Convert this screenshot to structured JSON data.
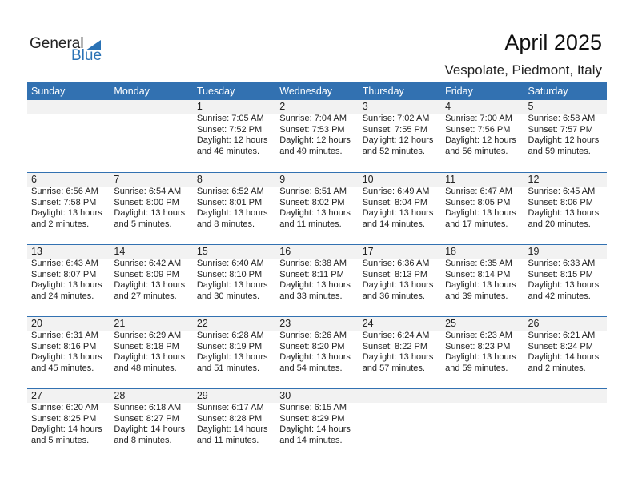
{
  "logo": {
    "general": "General",
    "blue": "Blue"
  },
  "title": "April 2025",
  "location": "Vespolate, Piedmont, Italy",
  "weekdays": [
    "Sunday",
    "Monday",
    "Tuesday",
    "Wednesday",
    "Thursday",
    "Friday",
    "Saturday"
  ],
  "weeks": [
    [
      null,
      null,
      {
        "day": "1",
        "sunrise": "Sunrise: 7:05 AM",
        "sunset": "Sunset: 7:52 PM",
        "daylight": "Daylight: 12 hours",
        "minutes": "and 46 minutes."
      },
      {
        "day": "2",
        "sunrise": "Sunrise: 7:04 AM",
        "sunset": "Sunset: 7:53 PM",
        "daylight": "Daylight: 12 hours",
        "minutes": "and 49 minutes."
      },
      {
        "day": "3",
        "sunrise": "Sunrise: 7:02 AM",
        "sunset": "Sunset: 7:55 PM",
        "daylight": "Daylight: 12 hours",
        "minutes": "and 52 minutes."
      },
      {
        "day": "4",
        "sunrise": "Sunrise: 7:00 AM",
        "sunset": "Sunset: 7:56 PM",
        "daylight": "Daylight: 12 hours",
        "minutes": "and 56 minutes."
      },
      {
        "day": "5",
        "sunrise": "Sunrise: 6:58 AM",
        "sunset": "Sunset: 7:57 PM",
        "daylight": "Daylight: 12 hours",
        "minutes": "and 59 minutes."
      }
    ],
    [
      {
        "day": "6",
        "sunrise": "Sunrise: 6:56 AM",
        "sunset": "Sunset: 7:58 PM",
        "daylight": "Daylight: 13 hours",
        "minutes": "and 2 minutes."
      },
      {
        "day": "7",
        "sunrise": "Sunrise: 6:54 AM",
        "sunset": "Sunset: 8:00 PM",
        "daylight": "Daylight: 13 hours",
        "minutes": "and 5 minutes."
      },
      {
        "day": "8",
        "sunrise": "Sunrise: 6:52 AM",
        "sunset": "Sunset: 8:01 PM",
        "daylight": "Daylight: 13 hours",
        "minutes": "and 8 minutes."
      },
      {
        "day": "9",
        "sunrise": "Sunrise: 6:51 AM",
        "sunset": "Sunset: 8:02 PM",
        "daylight": "Daylight: 13 hours",
        "minutes": "and 11 minutes."
      },
      {
        "day": "10",
        "sunrise": "Sunrise: 6:49 AM",
        "sunset": "Sunset: 8:04 PM",
        "daylight": "Daylight: 13 hours",
        "minutes": "and 14 minutes."
      },
      {
        "day": "11",
        "sunrise": "Sunrise: 6:47 AM",
        "sunset": "Sunset: 8:05 PM",
        "daylight": "Daylight: 13 hours",
        "minutes": "and 17 minutes."
      },
      {
        "day": "12",
        "sunrise": "Sunrise: 6:45 AM",
        "sunset": "Sunset: 8:06 PM",
        "daylight": "Daylight: 13 hours",
        "minutes": "and 20 minutes."
      }
    ],
    [
      {
        "day": "13",
        "sunrise": "Sunrise: 6:43 AM",
        "sunset": "Sunset: 8:07 PM",
        "daylight": "Daylight: 13 hours",
        "minutes": "and 24 minutes."
      },
      {
        "day": "14",
        "sunrise": "Sunrise: 6:42 AM",
        "sunset": "Sunset: 8:09 PM",
        "daylight": "Daylight: 13 hours",
        "minutes": "and 27 minutes."
      },
      {
        "day": "15",
        "sunrise": "Sunrise: 6:40 AM",
        "sunset": "Sunset: 8:10 PM",
        "daylight": "Daylight: 13 hours",
        "minutes": "and 30 minutes."
      },
      {
        "day": "16",
        "sunrise": "Sunrise: 6:38 AM",
        "sunset": "Sunset: 8:11 PM",
        "daylight": "Daylight: 13 hours",
        "minutes": "and 33 minutes."
      },
      {
        "day": "17",
        "sunrise": "Sunrise: 6:36 AM",
        "sunset": "Sunset: 8:13 PM",
        "daylight": "Daylight: 13 hours",
        "minutes": "and 36 minutes."
      },
      {
        "day": "18",
        "sunrise": "Sunrise: 6:35 AM",
        "sunset": "Sunset: 8:14 PM",
        "daylight": "Daylight: 13 hours",
        "minutes": "and 39 minutes."
      },
      {
        "day": "19",
        "sunrise": "Sunrise: 6:33 AM",
        "sunset": "Sunset: 8:15 PM",
        "daylight": "Daylight: 13 hours",
        "minutes": "and 42 minutes."
      }
    ],
    [
      {
        "day": "20",
        "sunrise": "Sunrise: 6:31 AM",
        "sunset": "Sunset: 8:16 PM",
        "daylight": "Daylight: 13 hours",
        "minutes": "and 45 minutes."
      },
      {
        "day": "21",
        "sunrise": "Sunrise: 6:29 AM",
        "sunset": "Sunset: 8:18 PM",
        "daylight": "Daylight: 13 hours",
        "minutes": "and 48 minutes."
      },
      {
        "day": "22",
        "sunrise": "Sunrise: 6:28 AM",
        "sunset": "Sunset: 8:19 PM",
        "daylight": "Daylight: 13 hours",
        "minutes": "and 51 minutes."
      },
      {
        "day": "23",
        "sunrise": "Sunrise: 6:26 AM",
        "sunset": "Sunset: 8:20 PM",
        "daylight": "Daylight: 13 hours",
        "minutes": "and 54 minutes."
      },
      {
        "day": "24",
        "sunrise": "Sunrise: 6:24 AM",
        "sunset": "Sunset: 8:22 PM",
        "daylight": "Daylight: 13 hours",
        "minutes": "and 57 minutes."
      },
      {
        "day": "25",
        "sunrise": "Sunrise: 6:23 AM",
        "sunset": "Sunset: 8:23 PM",
        "daylight": "Daylight: 13 hours",
        "minutes": "and 59 minutes."
      },
      {
        "day": "26",
        "sunrise": "Sunrise: 6:21 AM",
        "sunset": "Sunset: 8:24 PM",
        "daylight": "Daylight: 14 hours",
        "minutes": "and 2 minutes."
      }
    ],
    [
      {
        "day": "27",
        "sunrise": "Sunrise: 6:20 AM",
        "sunset": "Sunset: 8:25 PM",
        "daylight": "Daylight: 14 hours",
        "minutes": "and 5 minutes."
      },
      {
        "day": "28",
        "sunrise": "Sunrise: 6:18 AM",
        "sunset": "Sunset: 8:27 PM",
        "daylight": "Daylight: 14 hours",
        "minutes": "and 8 minutes."
      },
      {
        "day": "29",
        "sunrise": "Sunrise: 6:17 AM",
        "sunset": "Sunset: 8:28 PM",
        "daylight": "Daylight: 14 hours",
        "minutes": "and 11 minutes."
      },
      {
        "day": "30",
        "sunrise": "Sunrise: 6:15 AM",
        "sunset": "Sunset: 8:29 PM",
        "daylight": "Daylight: 14 hours",
        "minutes": "and 14 minutes."
      },
      null,
      null,
      null
    ]
  ],
  "colors": {
    "header": "#3271b1",
    "band": "#f2f2f2",
    "logo_blue": "#2a72b5"
  }
}
